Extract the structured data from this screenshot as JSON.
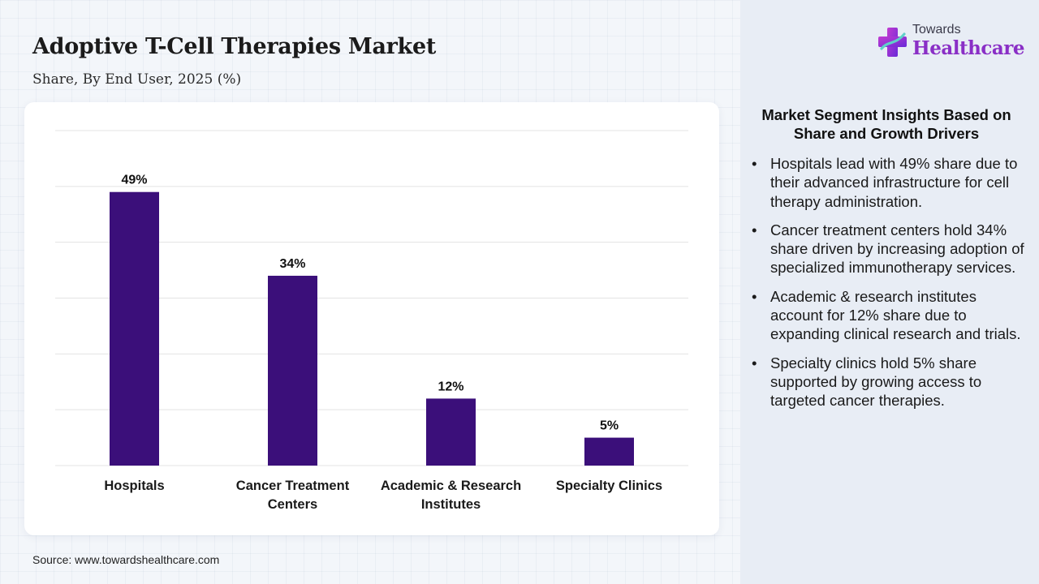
{
  "header": {
    "title": "Adoptive T-Cell Therapies Market",
    "subtitle": "Share, By End User, 2025 (%)"
  },
  "logo": {
    "top_text": "Towards",
    "bottom_text": "Healthcare",
    "icon": "cross-icon"
  },
  "chart_data": {
    "type": "bar",
    "categories": [
      "Hospitals",
      "Cancer Treatment Centers",
      "Academic & Research Institutes",
      "Specialty Clinics"
    ],
    "category_lines": [
      [
        "Hospitals"
      ],
      [
        "Cancer Treatment",
        "Centers"
      ],
      [
        "Academic & Research",
        "Institutes"
      ],
      [
        "Specialty Clinics"
      ]
    ],
    "values": [
      49,
      34,
      12,
      5
    ],
    "data_labels": [
      "49%",
      "34%",
      "12%",
      "5%"
    ],
    "title": "",
    "xlabel": "",
    "ylabel": "",
    "ylim": [
      0,
      60
    ],
    "grid": true,
    "bar_color": "#3b0f7a"
  },
  "insights": {
    "title": "Market Segment Insights Based on Share and Growth Drivers",
    "bullet": "•",
    "items": [
      "Hospitals lead with 49% share due to their advanced infrastructure for cell therapy administration.",
      "Cancer treatment centers hold 34% share driven by increasing adoption of specialized immunotherapy services.",
      "Academic & research institutes account for 12% share due to expanding clinical research and trials.",
      "Specialty clinics hold 5% share supported by growing access to targeted cancer therapies."
    ]
  },
  "source": "Source: www.towardshealthcare.com"
}
